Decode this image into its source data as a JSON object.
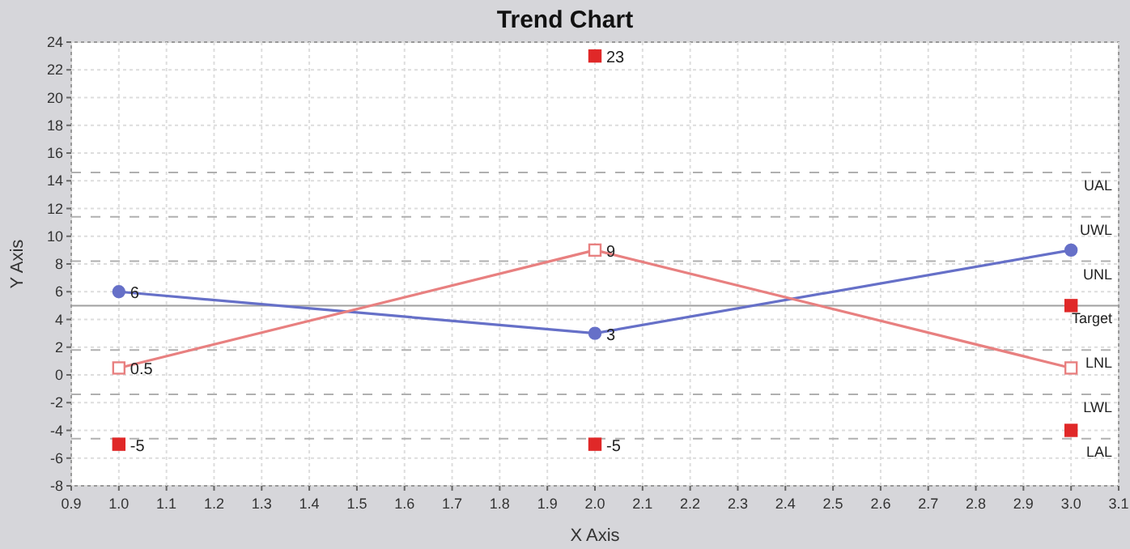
{
  "chart_data": {
    "type": "line",
    "title": "Trend Chart",
    "xlabel": "X Axis",
    "ylabel": "Y Axis",
    "xlim": [
      0.9,
      3.1
    ],
    "ylim": [
      -8,
      24
    ],
    "xticks": [
      0.9,
      {
        "value": 1,
        "label": "1.0"
      },
      1.1,
      1.2,
      1.3,
      1.4,
      1.5,
      1.6,
      1.7,
      1.8,
      1.9,
      {
        "value": 2,
        "label": "2.0"
      },
      2.1,
      2.2,
      2.3,
      2.4,
      2.5,
      2.6,
      2.7,
      2.8,
      2.9,
      {
        "value": 3,
        "label": "3.0"
      },
      3.1
    ],
    "yticks": [
      -8,
      -6,
      -4,
      -2,
      0,
      2,
      4,
      6,
      8,
      10,
      12,
      14,
      16,
      18,
      20,
      22,
      24
    ],
    "grid": true,
    "series": [
      {
        "color": "#6670c8",
        "x": [
          1,
          2,
          3
        ],
        "values": [
          6,
          3,
          9
        ],
        "value_labels": [
          "6",
          "3",
          null
        ],
        "marker": "circle"
      },
      {
        "color": "#e88080",
        "x": [
          1,
          2,
          3
        ],
        "values": [
          0.5,
          9,
          0.5
        ],
        "value_labels": [
          "0.5",
          "9",
          null
        ],
        "marker": "square"
      },
      {
        "type": "scatter",
        "color": "#e02828",
        "x": [
          1,
          2,
          2,
          3,
          3
        ],
        "values": [
          -5,
          23,
          -5,
          5,
          -4
        ],
        "value_labels": [
          "-5",
          "23",
          "-5",
          null,
          null
        ],
        "marker": "square"
      }
    ],
    "ref_lines": [
      {
        "axis": "y",
        "value": 14.6,
        "label": "UAL",
        "color": "#b0b0b0",
        "line_style": "dashed"
      },
      {
        "axis": "y",
        "value": 11.4,
        "label": "UWL",
        "color": "#b0b0b0",
        "line_style": "dashed"
      },
      {
        "axis": "y",
        "value": 8.2,
        "label": "UNL",
        "color": "#b0b0b0",
        "line_style": "dashed"
      },
      {
        "axis": "y",
        "value": 5,
        "label": "Target",
        "color": "#a0a0a0",
        "line_style": "solid"
      },
      {
        "axis": "y",
        "value": 1.8,
        "label": "LNL",
        "color": "#b0b0b0",
        "line_style": "dashed"
      },
      {
        "axis": "y",
        "value": -1.4,
        "label": "LWL",
        "color": "#b0b0b0",
        "line_style": "dashed"
      },
      {
        "axis": "y",
        "value": -4.6,
        "label": "LAL",
        "color": "#b0b0b0",
        "line_style": "dashed"
      }
    ]
  }
}
